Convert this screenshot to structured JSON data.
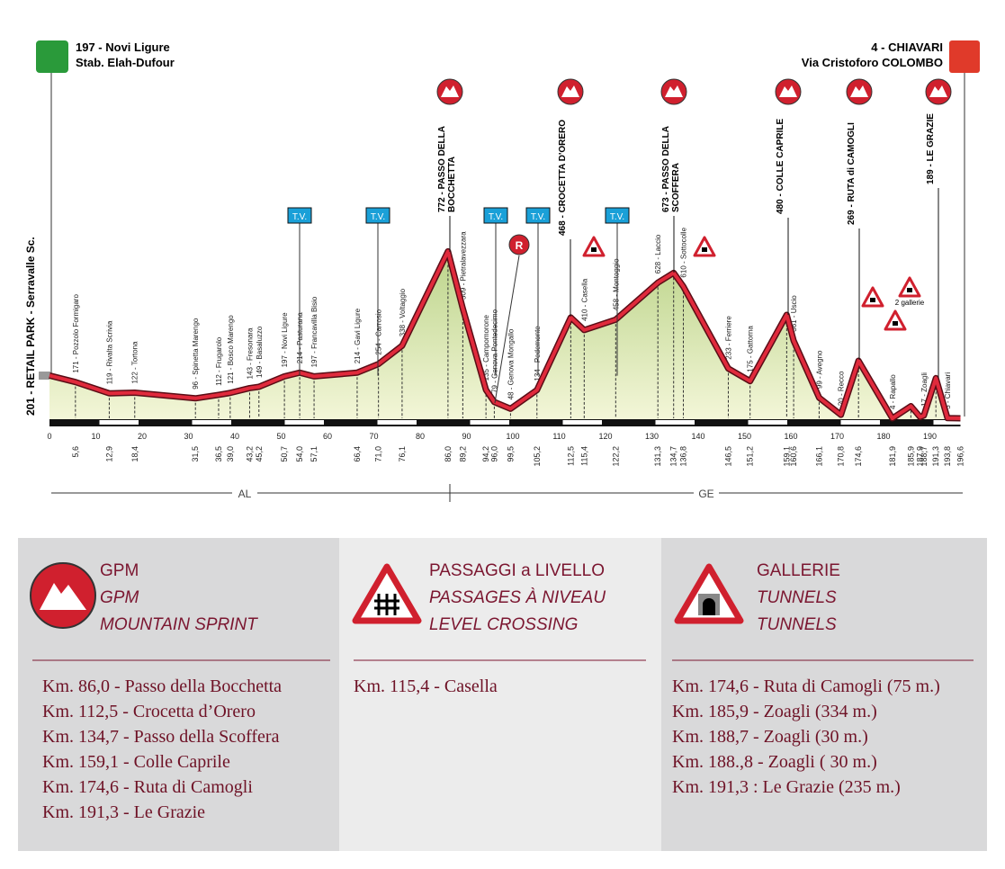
{
  "start": {
    "lines": [
      "197 - Novi Ligure",
      "Stab. Elah-Dufour"
    ]
  },
  "finish": {
    "lines": [
      "4 - CHIAVARI",
      "Via Cristoforo COLOMBO"
    ]
  },
  "profile": [
    {
      "km": 0,
      "km_label": null,
      "alt": 201,
      "label": "201 - RETAIL PARK - Serravalle Sc."
    },
    {
      "km": 5.6,
      "km_label": "5,6",
      "alt": 171,
      "label": "171 - Pozzolo Formigaro"
    },
    {
      "km": 12.9,
      "km_label": "12,9",
      "alt": 119,
      "label": "119 - Rivalta Scrivia"
    },
    {
      "km": 18.4,
      "km_label": "18,4",
      "alt": 122,
      "label": "122 - Tortona"
    },
    {
      "km": 31.5,
      "km_label": "31,5",
      "alt": 96,
      "label": "96 - Spinetta Marengo"
    },
    {
      "km": 36.5,
      "km_label": "36,5",
      "alt": 112,
      "label": "112 - Frugarolo"
    },
    {
      "km": 39.0,
      "km_label": "39,0",
      "alt": 121,
      "label": "121 - Bosco Marengo"
    },
    {
      "km": 43.2,
      "km_label": "43,2",
      "alt": 143,
      "label": "143 - Fresonara"
    },
    {
      "km": 45.2,
      "km_label": "45,2",
      "alt": 149,
      "label": "149 - Basaluzzo"
    },
    {
      "km": 50.7,
      "km_label": "50,7",
      "alt": 197,
      "label": "197 - Novi Ligure"
    },
    {
      "km": 54.0,
      "km_label": "54,0",
      "alt": 214,
      "label": "214 - Pasturana"
    },
    {
      "km": 57.1,
      "km_label": "57,1",
      "alt": 197,
      "label": "197 - Francavilla Bisio"
    },
    {
      "km": 66.4,
      "km_label": "66,4",
      "alt": 214,
      "label": "214 - Gavi Ligure"
    },
    {
      "km": 71.0,
      "km_label": "71,0",
      "alt": 254,
      "label": "254 - Carrosio"
    },
    {
      "km": 76.1,
      "km_label": "76,1",
      "alt": 338,
      "label": "338 - Voltaggio"
    },
    {
      "km": 86.0,
      "km_label": "86,0",
      "alt": 772,
      "label": null
    },
    {
      "km": 89.2,
      "km_label": "89,2",
      "alt": 509,
      "label": "509 - Pietralavezzara"
    },
    {
      "km": 94.2,
      "km_label": "94,2",
      "alt": 135,
      "label": "135 - Campomorone"
    },
    {
      "km": 96.0,
      "km_label": "96,0",
      "alt": 79,
      "label": "79 - Genova Pontedecimo"
    },
    {
      "km": 99.5,
      "km_label": "99,5",
      "alt": 48,
      "label": "48 - Genova Mongallo"
    },
    {
      "km": 105.2,
      "km_label": "105,2",
      "alt": 134,
      "label": "134 - Pedemonte"
    },
    {
      "km": 112.5,
      "km_label": "112,5",
      "alt": 468,
      "label": null
    },
    {
      "km": 115.4,
      "km_label": "115,4",
      "alt": 410,
      "label": "410 - Casella"
    },
    {
      "km": 122.2,
      "km_label": "122,2",
      "alt": 458,
      "label": "458 - Montoggio"
    },
    {
      "km": 131.3,
      "km_label": "131,3",
      "alt": 628,
      "label": "628 - Laccio"
    },
    {
      "km": 134.7,
      "km_label": "134,7",
      "alt": 673,
      "label": null
    },
    {
      "km": 136.8,
      "km_label": "136,8",
      "alt": 610,
      "label": "610 - Sottocolle"
    },
    {
      "km": 146.5,
      "km_label": "146,5",
      "alt": 233,
      "label": "233 - Ferriere"
    },
    {
      "km": 151.2,
      "km_label": "151,2",
      "alt": 175,
      "label": "175 - Gattorna"
    },
    {
      "km": 159.1,
      "km_label": "159,1",
      "alt": 480,
      "label": null
    },
    {
      "km": 160.6,
      "km_label": "160,6",
      "alt": 361,
      "label": "361 - Uscio"
    },
    {
      "km": 166.1,
      "km_label": "166,1",
      "alt": 99,
      "label": "99 - Avegno"
    },
    {
      "km": 170.8,
      "km_label": "170,8",
      "alt": 20,
      "label": "20 - Recco"
    },
    {
      "km": 174.6,
      "km_label": "174,6",
      "alt": 269,
      "label": null
    },
    {
      "km": 181.9,
      "km_label": "181,9",
      "alt": 4,
      "label": "4 - Rapallo"
    },
    {
      "km": 185.9,
      "km_label": "185,9",
      "alt": 60,
      "label": null
    },
    {
      "km": 187.9,
      "km_label": "187,9",
      "alt": 10,
      "label": null
    },
    {
      "km": 188.7,
      "km_label": "188,7",
      "alt": 17,
      "label": "17 - Zoagli"
    },
    {
      "km": 191.3,
      "km_label": "191,3",
      "alt": 189,
      "label": null
    },
    {
      "km": 193.8,
      "km_label": "193,8",
      "alt": 5,
      "label": "5 - Chiavari"
    },
    {
      "km": 196.6,
      "km_label": "196,6",
      "alt": 4,
      "label": null
    }
  ],
  "km_ticks": [
    0,
    10,
    20,
    30,
    40,
    50,
    60,
    70,
    80,
    90,
    100,
    110,
    120,
    130,
    140,
    150,
    160,
    170,
    180,
    190
  ],
  "gpm": [
    [
      "772 - PASSO DELLA",
      "BOCCHETTA"
    ],
    [
      "468 - CROCETTA D'ORERO"
    ],
    [
      "673 - PASSO DELLA",
      "SCOFFERA"
    ],
    [
      "480 - COLLE CAPRILE"
    ],
    [
      "269 - RUTA di CAMOGLI"
    ],
    [
      "189 - LE GRAZIE"
    ]
  ],
  "tv": [
    "T.V.",
    "T.V.",
    "T.V.",
    "T.V.",
    "T.V."
  ],
  "r_marker": "R",
  "tunnel_note": "2 gallerie",
  "regions": [
    "AL",
    "GE"
  ],
  "legend": [
    {
      "title": [
        "GPM",
        "GPM",
        "MOUNTAIN SPRINT"
      ],
      "items": [
        "Km. 86,0 - Passo della Bocchetta",
        "Km. 112,5 - Crocetta d’Orero",
        "Km. 134,7 - Passo della Scoffera",
        "Km. 159,1 - Colle Caprile",
        "Km. 174,6 - Ruta di Camogli",
        "Km.  191,3 - Le Grazie"
      ]
    },
    {
      "title": [
        "PASSAGGI a LIVELLO",
        "PASSAGES À NIVEAU",
        "LEVEL CROSSING"
      ],
      "items": [
        "Km. 115,4 - Casella"
      ]
    },
    {
      "title": [
        "GALLERIE",
        "TUNNELS",
        "TUNNELS"
      ],
      "items": [
        "Km. 174,6  - Ruta di Camogli (75 m.)",
        "Km. 185,9  - Zoagli (334 m.)",
        "Km. 188,7 - Zoagli (30 m.)",
        "Km. 188.,8 - Zoagli ( 30 m.)",
        "Km. 191,3 : Le Grazie (235 m.)"
      ]
    }
  ]
}
